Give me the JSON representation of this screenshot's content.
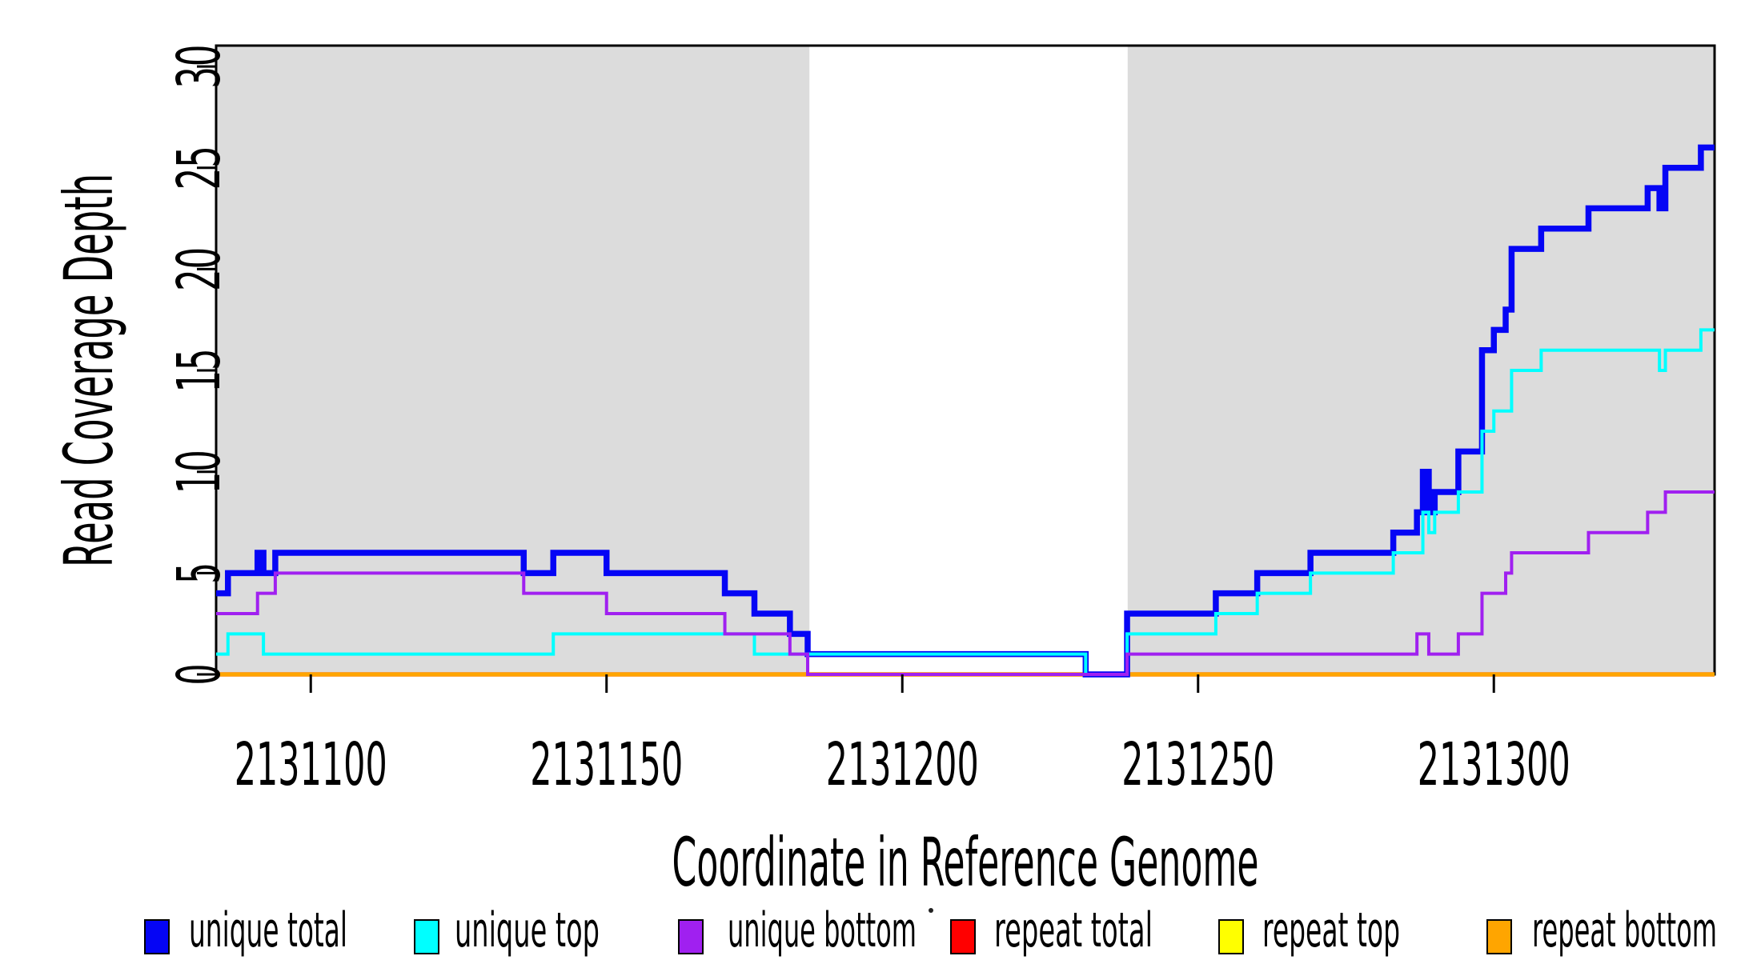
{
  "chart_data": {
    "type": "line",
    "subtype": "step-coverage",
    "title": "",
    "xlabel": "Coordinate in Reference Genome",
    "ylabel": "Read Coverage Depth",
    "xlim": [
      2131084,
      2131337.3
    ],
    "ylim": [
      0,
      30
    ],
    "grid": "off",
    "plot_background": "#FFFFFF",
    "shaded_region_color": "#DCDCDC",
    "shaded_regions": [
      {
        "x0": 2131084,
        "x1": 2131184.3
      },
      {
        "x0": 2131238.1,
        "x1": 2131337.3
      }
    ],
    "x_ticks": [
      {
        "value": 2131100,
        "label": "2131100"
      },
      {
        "value": 2131150,
        "label": "2131150"
      },
      {
        "value": 2131200,
        "label": "2131200"
      },
      {
        "value": 2131250,
        "label": "2131250"
      },
      {
        "value": 2131300,
        "label": "2131300"
      }
    ],
    "y_ticks": [
      {
        "value": 0,
        "label": "0"
      },
      {
        "value": 5,
        "label": "5"
      },
      {
        "value": 10,
        "label": "10"
      },
      {
        "value": 15,
        "label": "15"
      },
      {
        "value": 20,
        "label": "20"
      },
      {
        "value": 25,
        "label": "25"
      },
      {
        "value": 30,
        "label": "30"
      }
    ],
    "series": [
      {
        "name": "repeat total",
        "color": "#FF0000",
        "width": 5.5,
        "points": [
          [
            2131084,
            0
          ]
        ]
      },
      {
        "name": "repeat top",
        "color": "#FFFF00",
        "width": 5,
        "points": [
          [
            2131084,
            0
          ]
        ]
      },
      {
        "name": "repeat bottom",
        "color": "#FFA500",
        "width": 4.5,
        "points": [
          [
            2131084,
            0
          ]
        ]
      },
      {
        "name": "unique total",
        "color": "#0505F5",
        "width": 7.5,
        "points": [
          [
            2131084,
            4
          ],
          [
            2131086,
            5
          ],
          [
            2131091,
            6
          ],
          [
            2131092,
            5
          ],
          [
            2131094,
            6
          ],
          [
            2131136,
            5
          ],
          [
            2131141,
            6
          ],
          [
            2131150,
            5
          ],
          [
            2131170,
            4
          ],
          [
            2131175,
            3
          ],
          [
            2131181,
            2
          ],
          [
            2131184,
            1
          ],
          [
            2131231,
            0
          ],
          [
            2131238,
            3
          ],
          [
            2131253,
            4
          ],
          [
            2131260,
            5
          ],
          [
            2131269,
            6
          ],
          [
            2131283,
            7
          ],
          [
            2131287,
            8
          ],
          [
            2131288,
            10
          ],
          [
            2131289,
            8
          ],
          [
            2131290,
            9
          ],
          [
            2131294,
            11
          ],
          [
            2131298,
            16
          ],
          [
            2131300,
            17
          ],
          [
            2131302,
            18
          ],
          [
            2131303,
            21
          ],
          [
            2131308,
            22
          ],
          [
            2131316,
            23
          ],
          [
            2131326,
            24
          ],
          [
            2131328,
            23
          ],
          [
            2131329,
            25
          ],
          [
            2131335,
            26
          ]
        ]
      },
      {
        "name": "unique top",
        "color": "#00FFFF",
        "width": 4,
        "points": [
          [
            2131084,
            1
          ],
          [
            2131086,
            2
          ],
          [
            2131092,
            1
          ],
          [
            2131141,
            2
          ],
          [
            2131175,
            1
          ],
          [
            2131231,
            0
          ],
          [
            2131238,
            2
          ],
          [
            2131253,
            3
          ],
          [
            2131260,
            4
          ],
          [
            2131269,
            5
          ],
          [
            2131283,
            6
          ],
          [
            2131288,
            8
          ],
          [
            2131289,
            7
          ],
          [
            2131290,
            8
          ],
          [
            2131294,
            9
          ],
          [
            2131298,
            12
          ],
          [
            2131300,
            13
          ],
          [
            2131303,
            15
          ],
          [
            2131308,
            16
          ],
          [
            2131328,
            15
          ],
          [
            2131329,
            16
          ],
          [
            2131335,
            17
          ]
        ]
      },
      {
        "name": "unique bottom",
        "color": "#A020F0",
        "width": 4,
        "points": [
          [
            2131084,
            3
          ],
          [
            2131091,
            4
          ],
          [
            2131094,
            5
          ],
          [
            2131136,
            4
          ],
          [
            2131150,
            3
          ],
          [
            2131170,
            2
          ],
          [
            2131181,
            1
          ],
          [
            2131184,
            0
          ],
          [
            2131238,
            1
          ],
          [
            2131287,
            2
          ],
          [
            2131289,
            1
          ],
          [
            2131294,
            2
          ],
          [
            2131298,
            4
          ],
          [
            2131302,
            5
          ],
          [
            2131303,
            6
          ],
          [
            2131316,
            7
          ],
          [
            2131326,
            8
          ],
          [
            2131329,
            9
          ]
        ]
      }
    ],
    "legend": {
      "position": "bottom",
      "items": [
        {
          "label": "unique total",
          "color": "#0505F5"
        },
        {
          "label": "unique top",
          "color": "#00FFFF"
        },
        {
          "label": "unique bottom",
          "color": "#A020F0"
        },
        {
          "label": "repeat total",
          "color": "#FF0000"
        },
        {
          "label": "repeat top",
          "color": "#FFFF00"
        },
        {
          "label": "repeat bottom",
          "color": "#FFA500"
        }
      ]
    }
  }
}
